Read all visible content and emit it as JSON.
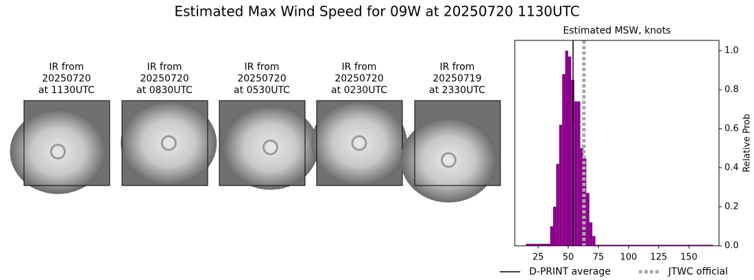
{
  "title": "Estimated Max Wind Speed for 09W at 20250720 1130UTC",
  "panels": [
    {
      "lines": [
        "IR from",
        "20250720",
        "at 1130UTC"
      ]
    },
    {
      "lines": [
        "IR from",
        "20250720",
        "at 0830UTC"
      ]
    },
    {
      "lines": [
        "IR from",
        "20250720",
        "at 0530UTC"
      ]
    },
    {
      "lines": [
        "IR from",
        "20250720",
        "at 0230UTC"
      ]
    },
    {
      "lines": [
        "IR from",
        "20250719",
        "at 2330UTC"
      ]
    }
  ],
  "chart_data": {
    "type": "histogram",
    "title": "Estimated MSW, knots",
    "y_label": "Relative Prob",
    "bins": [
      15,
      17.5,
      35,
      37.5,
      40,
      42.5,
      45,
      47.5,
      50,
      52.5,
      55,
      57.5,
      60,
      62.5,
      65,
      67.5,
      70,
      72.5,
      170
    ],
    "values": [
      0.01,
      0.01,
      0.1,
      0.2,
      0.42,
      0.62,
      0.88,
      1.0,
      0.97,
      0.85,
      0.74,
      0.74,
      0.5,
      0.45,
      0.27,
      0.12,
      0.05,
      0.005
    ],
    "color": "#8b008b",
    "xlim": [
      5.7,
      175
    ],
    "xticks": [
      25,
      50,
      75,
      100,
      125,
      150
    ],
    "ylim": [
      0,
      1.0526
    ],
    "yticks": [
      {
        "value": 0,
        "label": "0.0"
      },
      {
        "value": 0.2,
        "label": "0.2"
      },
      {
        "value": 0.4,
        "label": "0.4"
      },
      {
        "value": 0.6,
        "label": "0.6"
      },
      {
        "value": 0.8,
        "label": "0.8"
      },
      {
        "value": 1,
        "label": "1.0"
      }
    ],
    "lines": [
      {
        "name": "D-PRINT average",
        "value": 54,
        "color": "#000000",
        "style": "solid"
      },
      {
        "name": "JTWC official",
        "value": 63,
        "color": "#a9a9a9",
        "style": "dotted"
      }
    ]
  }
}
